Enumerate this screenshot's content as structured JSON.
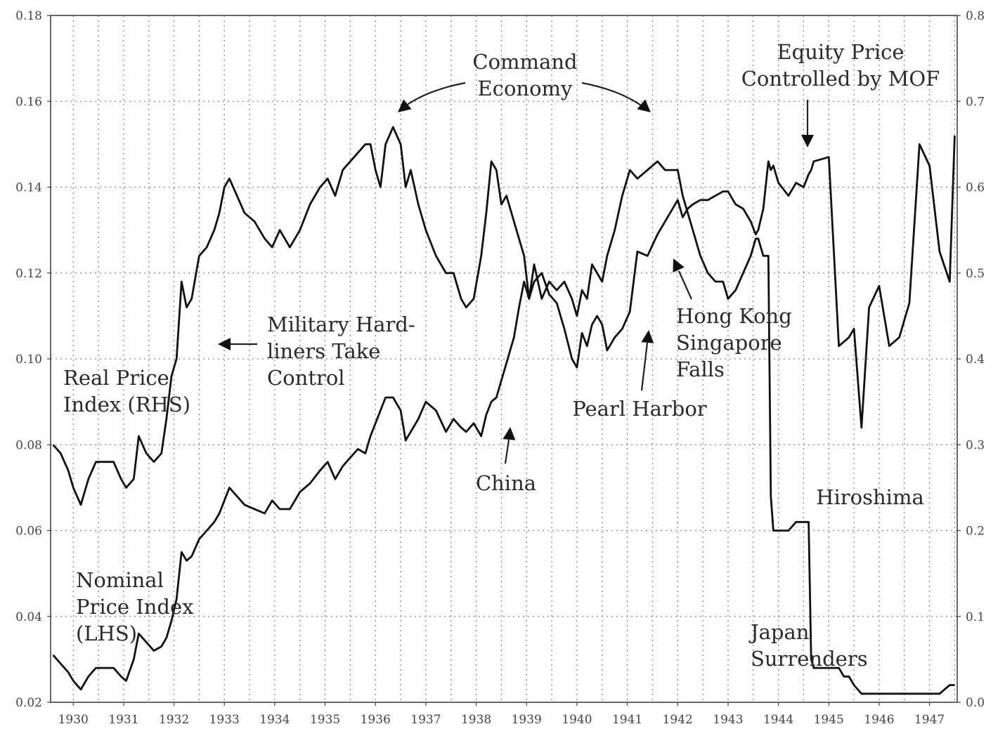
{
  "chart_data": {
    "type": "line",
    "title": "",
    "xlabel": "",
    "ylabel": "",
    "x_ticks": [
      "1930",
      "1931",
      "1932",
      "1933",
      "1934",
      "1935",
      "1936",
      "1937",
      "1938",
      "1939",
      "1940",
      "1941",
      "1942",
      "1943",
      "1944",
      "1945",
      "1946",
      "1947"
    ],
    "y_left_ticks": [
      "0.02",
      "0.04",
      "0.06",
      "0.08",
      "0.10",
      "0.12",
      "0.14",
      "0.16",
      "0.18"
    ],
    "y_right_ticks": [
      "0.0",
      "0.1",
      "0.2",
      "0.3",
      "0.4",
      "0.5",
      "0.6",
      "0.7",
      "0.8"
    ],
    "ylim_left": [
      0.02,
      0.18
    ],
    "ylim_right": [
      0.0,
      0.8
    ],
    "xlim": [
      1929.55,
      1947.55
    ],
    "grid": true,
    "series": [
      {
        "name": "Real Price Index (RHS)",
        "axis": "right",
        "points": [
          [
            1929.6,
            0.3
          ],
          [
            1929.75,
            0.29
          ],
          [
            1929.9,
            0.27
          ],
          [
            1930.0,
            0.25
          ],
          [
            1930.15,
            0.23
          ],
          [
            1930.3,
            0.26
          ],
          [
            1930.45,
            0.28
          ],
          [
            1930.6,
            0.28
          ],
          [
            1930.8,
            0.28
          ],
          [
            1930.95,
            0.26
          ],
          [
            1931.05,
            0.25
          ],
          [
            1931.2,
            0.26
          ],
          [
            1931.3,
            0.31
          ],
          [
            1931.45,
            0.29
          ],
          [
            1931.6,
            0.28
          ],
          [
            1931.75,
            0.29
          ],
          [
            1931.85,
            0.33
          ],
          [
            1931.95,
            0.38
          ],
          [
            1932.05,
            0.4
          ],
          [
            1932.15,
            0.49
          ],
          [
            1932.25,
            0.46
          ],
          [
            1932.35,
            0.47
          ],
          [
            1932.5,
            0.52
          ],
          [
            1932.65,
            0.53
          ],
          [
            1932.8,
            0.55
          ],
          [
            1932.9,
            0.57
          ],
          [
            1933.0,
            0.6
          ],
          [
            1933.1,
            0.61
          ],
          [
            1933.25,
            0.59
          ],
          [
            1933.4,
            0.57
          ],
          [
            1933.6,
            0.56
          ],
          [
            1933.8,
            0.54
          ],
          [
            1933.95,
            0.53
          ],
          [
            1934.1,
            0.55
          ],
          [
            1934.3,
            0.53
          ],
          [
            1934.5,
            0.55
          ],
          [
            1934.7,
            0.58
          ],
          [
            1934.9,
            0.6
          ],
          [
            1935.05,
            0.61
          ],
          [
            1935.2,
            0.59
          ],
          [
            1935.35,
            0.62
          ],
          [
            1935.5,
            0.63
          ],
          [
            1935.65,
            0.64
          ],
          [
            1935.8,
            0.65
          ],
          [
            1935.9,
            0.65
          ],
          [
            1936.0,
            0.62
          ],
          [
            1936.1,
            0.6
          ],
          [
            1936.2,
            0.65
          ],
          [
            1936.35,
            0.67
          ],
          [
            1936.5,
            0.65
          ],
          [
            1936.6,
            0.6
          ],
          [
            1936.7,
            0.62
          ],
          [
            1936.85,
            0.58
          ],
          [
            1937.0,
            0.55
          ],
          [
            1937.2,
            0.52
          ],
          [
            1937.4,
            0.5
          ],
          [
            1937.55,
            0.5
          ],
          [
            1937.7,
            0.47
          ],
          [
            1937.8,
            0.46
          ],
          [
            1937.95,
            0.47
          ],
          [
            1938.1,
            0.52
          ],
          [
            1938.2,
            0.57
          ],
          [
            1938.3,
            0.63
          ],
          [
            1938.4,
            0.62
          ],
          [
            1938.5,
            0.58
          ],
          [
            1938.6,
            0.59
          ],
          [
            1938.75,
            0.56
          ],
          [
            1938.85,
            0.54
          ],
          [
            1938.95,
            0.52
          ],
          [
            1939.05,
            0.47
          ],
          [
            1939.15,
            0.51
          ],
          [
            1939.3,
            0.47
          ],
          [
            1939.45,
            0.49
          ],
          [
            1939.6,
            0.48
          ],
          [
            1939.75,
            0.49
          ],
          [
            1939.9,
            0.47
          ],
          [
            1940.0,
            0.45
          ],
          [
            1940.1,
            0.48
          ],
          [
            1940.2,
            0.47
          ],
          [
            1940.3,
            0.51
          ],
          [
            1940.4,
            0.5
          ],
          [
            1940.5,
            0.49
          ],
          [
            1940.6,
            0.52
          ],
          [
            1940.75,
            0.55
          ],
          [
            1940.9,
            0.59
          ],
          [
            1941.05,
            0.62
          ],
          [
            1941.2,
            0.61
          ],
          [
            1941.4,
            0.62
          ],
          [
            1941.6,
            0.63
          ],
          [
            1941.75,
            0.62
          ],
          [
            1941.9,
            0.62
          ],
          [
            1942.0,
            0.62
          ],
          [
            1942.1,
            0.59
          ],
          [
            1942.2,
            0.57
          ],
          [
            1942.3,
            0.55
          ],
          [
            1942.45,
            0.52
          ],
          [
            1942.6,
            0.5
          ],
          [
            1942.75,
            0.49
          ],
          [
            1942.9,
            0.49
          ],
          [
            1943.0,
            0.47
          ],
          [
            1943.15,
            0.48
          ],
          [
            1943.3,
            0.5
          ],
          [
            1943.45,
            0.52
          ],
          [
            1943.55,
            0.54
          ],
          [
            1943.6,
            0.54
          ],
          [
            1943.7,
            0.52
          ],
          [
            1943.8,
            0.52
          ],
          [
            1943.85,
            0.24
          ],
          [
            1943.9,
            0.2
          ],
          [
            1944.0,
            0.2
          ],
          [
            1944.2,
            0.2
          ],
          [
            1944.35,
            0.21
          ],
          [
            1944.5,
            0.21
          ],
          [
            1944.6,
            0.21
          ],
          [
            1944.65,
            0.05
          ],
          [
            1944.7,
            0.04
          ],
          [
            1945.0,
            0.04
          ],
          [
            1945.2,
            0.04
          ],
          [
            1945.3,
            0.03
          ],
          [
            1945.4,
            0.03
          ],
          [
            1945.5,
            0.02
          ],
          [
            1945.65,
            0.01
          ],
          [
            1945.8,
            0.01
          ],
          [
            1946.0,
            0.01
          ],
          [
            1946.2,
            0.01
          ],
          [
            1946.4,
            0.01
          ],
          [
            1946.6,
            0.01
          ],
          [
            1946.8,
            0.01
          ],
          [
            1947.0,
            0.01
          ],
          [
            1947.2,
            0.01
          ],
          [
            1947.4,
            0.02
          ],
          [
            1947.5,
            0.02
          ]
        ]
      },
      {
        "name": "Nominal Price Index (LHS)",
        "axis": "left",
        "points": [
          [
            1929.6,
            0.031
          ],
          [
            1929.75,
            0.029
          ],
          [
            1929.9,
            0.027
          ],
          [
            1930.0,
            0.025
          ],
          [
            1930.15,
            0.023
          ],
          [
            1930.3,
            0.026
          ],
          [
            1930.45,
            0.028
          ],
          [
            1930.6,
            0.028
          ],
          [
            1930.8,
            0.028
          ],
          [
            1930.95,
            0.026
          ],
          [
            1931.05,
            0.025
          ],
          [
            1931.2,
            0.03
          ],
          [
            1931.3,
            0.036
          ],
          [
            1931.45,
            0.034
          ],
          [
            1931.6,
            0.032
          ],
          [
            1931.75,
            0.033
          ],
          [
            1931.85,
            0.035
          ],
          [
            1931.95,
            0.039
          ],
          [
            1932.05,
            0.044
          ],
          [
            1932.15,
            0.055
          ],
          [
            1932.25,
            0.053
          ],
          [
            1932.35,
            0.054
          ],
          [
            1932.5,
            0.058
          ],
          [
            1932.65,
            0.06
          ],
          [
            1932.8,
            0.062
          ],
          [
            1932.9,
            0.064
          ],
          [
            1933.0,
            0.067
          ],
          [
            1933.1,
            0.07
          ],
          [
            1933.25,
            0.068
          ],
          [
            1933.4,
            0.066
          ],
          [
            1933.6,
            0.065
          ],
          [
            1933.8,
            0.064
          ],
          [
            1933.95,
            0.067
          ],
          [
            1934.1,
            0.065
          ],
          [
            1934.3,
            0.065
          ],
          [
            1934.5,
            0.069
          ],
          [
            1934.7,
            0.071
          ],
          [
            1934.9,
            0.074
          ],
          [
            1935.05,
            0.076
          ],
          [
            1935.2,
            0.072
          ],
          [
            1935.35,
            0.075
          ],
          [
            1935.5,
            0.077
          ],
          [
            1935.65,
            0.079
          ],
          [
            1935.8,
            0.078
          ],
          [
            1935.9,
            0.082
          ],
          [
            1936.0,
            0.085
          ],
          [
            1936.1,
            0.088
          ],
          [
            1936.2,
            0.091
          ],
          [
            1936.35,
            0.091
          ],
          [
            1936.5,
            0.088
          ],
          [
            1936.6,
            0.081
          ],
          [
            1936.7,
            0.083
          ],
          [
            1936.85,
            0.086
          ],
          [
            1937.0,
            0.09
          ],
          [
            1937.2,
            0.088
          ],
          [
            1937.4,
            0.083
          ],
          [
            1937.55,
            0.086
          ],
          [
            1937.7,
            0.084
          ],
          [
            1937.8,
            0.083
          ],
          [
            1937.95,
            0.085
          ],
          [
            1938.1,
            0.082
          ],
          [
            1938.2,
            0.087
          ],
          [
            1938.3,
            0.09
          ],
          [
            1938.4,
            0.091
          ],
          [
            1938.5,
            0.095
          ],
          [
            1938.6,
            0.099
          ],
          [
            1938.75,
            0.105
          ],
          [
            1938.85,
            0.112
          ],
          [
            1938.95,
            0.118
          ],
          [
            1939.05,
            0.114
          ],
          [
            1939.15,
            0.118
          ],
          [
            1939.3,
            0.12
          ],
          [
            1939.45,
            0.115
          ],
          [
            1939.6,
            0.113
          ],
          [
            1939.75,
            0.107
          ],
          [
            1939.9,
            0.1
          ],
          [
            1940.0,
            0.098
          ],
          [
            1940.1,
            0.106
          ],
          [
            1940.2,
            0.103
          ],
          [
            1940.3,
            0.108
          ],
          [
            1940.4,
            0.11
          ],
          [
            1940.5,
            0.108
          ],
          [
            1940.6,
            0.102
          ],
          [
            1940.75,
            0.105
          ],
          [
            1940.9,
            0.107
          ],
          [
            1941.05,
            0.111
          ],
          [
            1941.2,
            0.125
          ],
          [
            1941.4,
            0.124
          ],
          [
            1941.6,
            0.129
          ],
          [
            1941.75,
            0.132
          ],
          [
            1941.9,
            0.135
          ],
          [
            1942.0,
            0.137
          ],
          [
            1942.1,
            0.133
          ],
          [
            1942.2,
            0.135
          ],
          [
            1942.3,
            0.136
          ],
          [
            1942.45,
            0.137
          ],
          [
            1942.6,
            0.137
          ],
          [
            1942.75,
            0.138
          ],
          [
            1942.9,
            0.139
          ],
          [
            1943.0,
            0.139
          ],
          [
            1943.15,
            0.136
          ],
          [
            1943.3,
            0.135
          ],
          [
            1943.45,
            0.132
          ],
          [
            1943.55,
            0.129
          ],
          [
            1943.6,
            0.13
          ],
          [
            1943.7,
            0.135
          ],
          [
            1943.8,
            0.146
          ],
          [
            1943.85,
            0.144
          ],
          [
            1943.9,
            0.145
          ],
          [
            1944.0,
            0.141
          ],
          [
            1944.2,
            0.138
          ],
          [
            1944.35,
            0.141
          ],
          [
            1944.5,
            0.14
          ],
          [
            1944.6,
            0.143
          ],
          [
            1944.65,
            0.144
          ],
          [
            1944.7,
            0.146
          ],
          [
            1945.0,
            0.147
          ],
          [
            1945.2,
            0.103
          ],
          [
            1945.3,
            0.104
          ],
          [
            1945.4,
            0.105
          ],
          [
            1945.5,
            0.107
          ],
          [
            1945.65,
            0.084
          ],
          [
            1945.8,
            0.112
          ],
          [
            1946.0,
            0.117
          ],
          [
            1946.2,
            0.103
          ],
          [
            1946.4,
            0.105
          ],
          [
            1946.6,
            0.113
          ],
          [
            1946.8,
            0.15
          ],
          [
            1947.0,
            0.145
          ],
          [
            1947.2,
            0.125
          ],
          [
            1947.4,
            0.118
          ],
          [
            1947.5,
            0.152
          ]
        ]
      }
    ],
    "annotations": [
      {
        "id": "command-economy",
        "lines": [
          "Command",
          "Economy"
        ]
      },
      {
        "id": "equity-price",
        "lines": [
          "Equity Price",
          "Controlled by MOF"
        ]
      },
      {
        "id": "military",
        "lines": [
          "Military Hard-",
          "liners Take",
          "Control"
        ]
      },
      {
        "id": "real-index",
        "lines": [
          "Real Price",
          "Index (RHS)"
        ]
      },
      {
        "id": "hong-kong",
        "lines": [
          "Hong Kong",
          "Singapore",
          "Falls"
        ]
      },
      {
        "id": "pearl-harbor",
        "lines": [
          "Pearl Harbor"
        ]
      },
      {
        "id": "china",
        "lines": [
          "China"
        ]
      },
      {
        "id": "hiroshima",
        "lines": [
          "Hiroshima"
        ]
      },
      {
        "id": "nominal-index",
        "lines": [
          "Nominal",
          "Price Index",
          "(LHS)"
        ]
      },
      {
        "id": "japan-surrenders",
        "lines": [
          "Japan",
          "Surrenders"
        ]
      }
    ]
  }
}
